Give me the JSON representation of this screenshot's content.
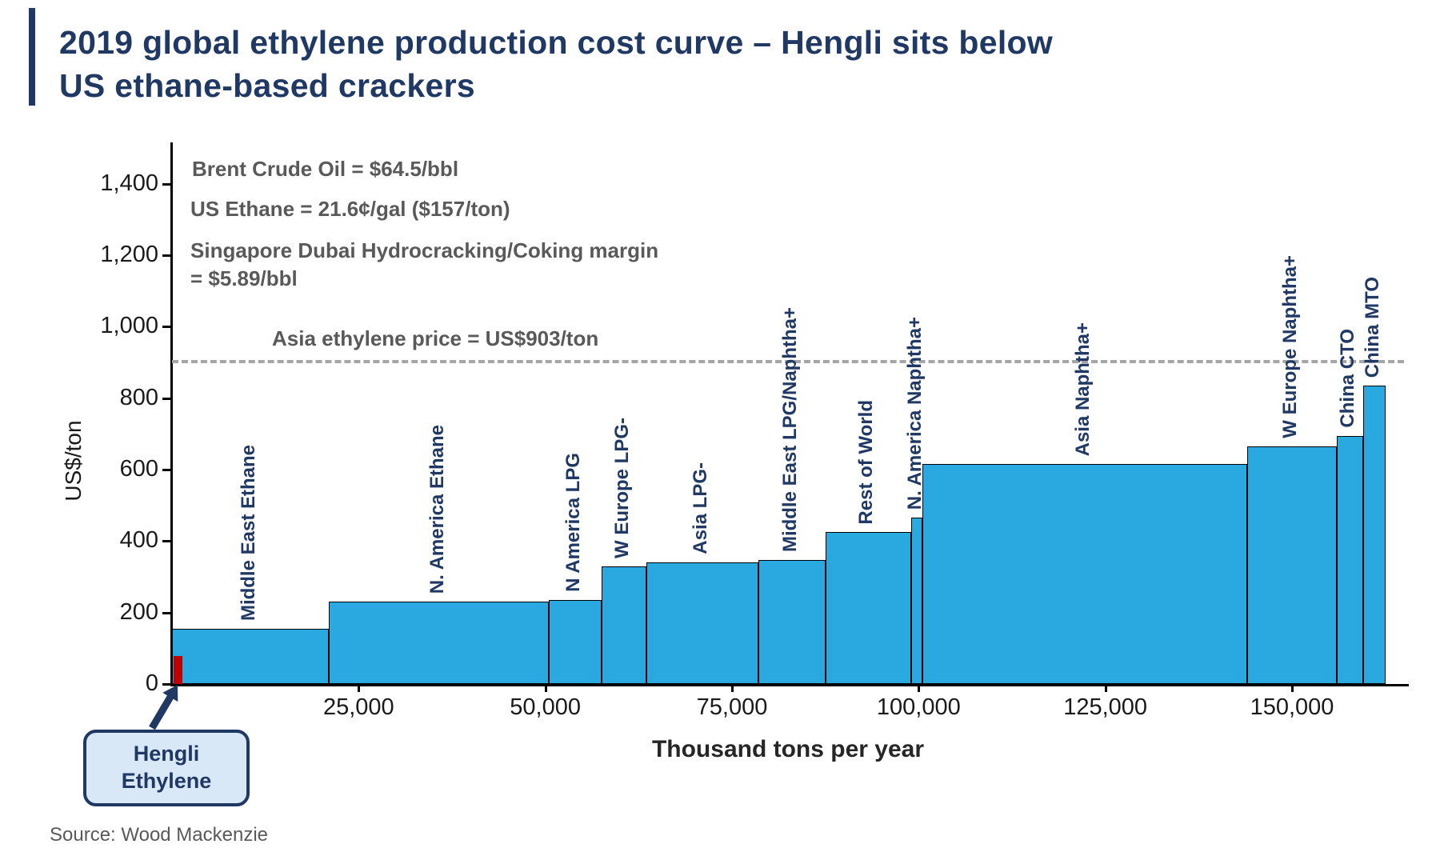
{
  "accent_color": "#1F3864",
  "title": {
    "line1": "2019 global ethylene production cost curve – Hengli sits below",
    "line2": "US ethane-based crackers"
  },
  "annotations": {
    "brent": "Brent Crude Oil = $64.5/bbl",
    "us_ethane": "US Ethane = 21.6¢/gal ($157/ton)",
    "singapore_line1": "Singapore Dubai Hydrocracking/Coking margin",
    "singapore_line2": "= $5.89/bbl"
  },
  "callout": {
    "line1": "Hengli",
    "line2": "Ethylene"
  },
  "source": "Source: Wood Mackenzie",
  "chart_data": {
    "type": "bar",
    "subtype": "supply-cost-curve-step-chart",
    "title": "2019 global ethylene production cost curve",
    "xlabel": "Thousand tons per year",
    "ylabel": "US$/ton",
    "xlim": [
      0,
      165000
    ],
    "ylim": [
      0,
      1500
    ],
    "grid": false,
    "legend_position": "none",
    "bar_color": "#29A9E0",
    "bar_border_color": "#000000",
    "x_ticks": [
      25000,
      50000,
      75000,
      100000,
      125000,
      150000
    ],
    "x_tick_labels": [
      "25,000",
      "50,000",
      "75,000",
      "100,000",
      "125,000",
      "150,000"
    ],
    "y_ticks": [
      0,
      200,
      400,
      600,
      800,
      1000,
      1200,
      1400
    ],
    "y_tick_labels": [
      "0",
      "200",
      "400",
      "600",
      "800",
      "1,000",
      "1,200",
      "1,400"
    ],
    "reference_line": {
      "value": 903,
      "label": "Asia ethylene price =  US$903/ton",
      "style": "dashed",
      "color": "#A6A6A6"
    },
    "segments": [
      {
        "label": "Middle East Ethane",
        "from": 0,
        "to": 21000,
        "cost": 155
      },
      {
        "label": "N. America Ethane",
        "from": 21000,
        "to": 50500,
        "cost": 230
      },
      {
        "label": "N America LPG",
        "from": 50500,
        "to": 57500,
        "cost": 235
      },
      {
        "label": "W Europe LPG-",
        "from": 57500,
        "to": 63500,
        "cost": 330
      },
      {
        "label": "Asia LPG-",
        "from": 63500,
        "to": 78500,
        "cost": 340
      },
      {
        "label": "Middle East LPG/Naphtha+",
        "from": 78500,
        "to": 87500,
        "cost": 348
      },
      {
        "label": "Rest of World",
        "from": 87500,
        "to": 99000,
        "cost": 425
      },
      {
        "label": "N. America Naphtha+",
        "from": 99000,
        "to": 100500,
        "cost": 465
      },
      {
        "label": "Asia Naphtha+",
        "from": 100500,
        "to": 144000,
        "cost": 615
      },
      {
        "label": "W Europe Naphtha+",
        "from": 144000,
        "to": 156000,
        "cost": 665
      },
      {
        "label": "China CTO",
        "from": 156000,
        "to": 159500,
        "cost": 695
      },
      {
        "label": "China MTO",
        "from": 159500,
        "to": 162500,
        "cost": 835
      }
    ],
    "hengli_marker": {
      "label": "Hengli Ethylene",
      "capacity_from": 0,
      "capacity_to": 1200,
      "cost": 78,
      "color": "#C00000"
    }
  }
}
